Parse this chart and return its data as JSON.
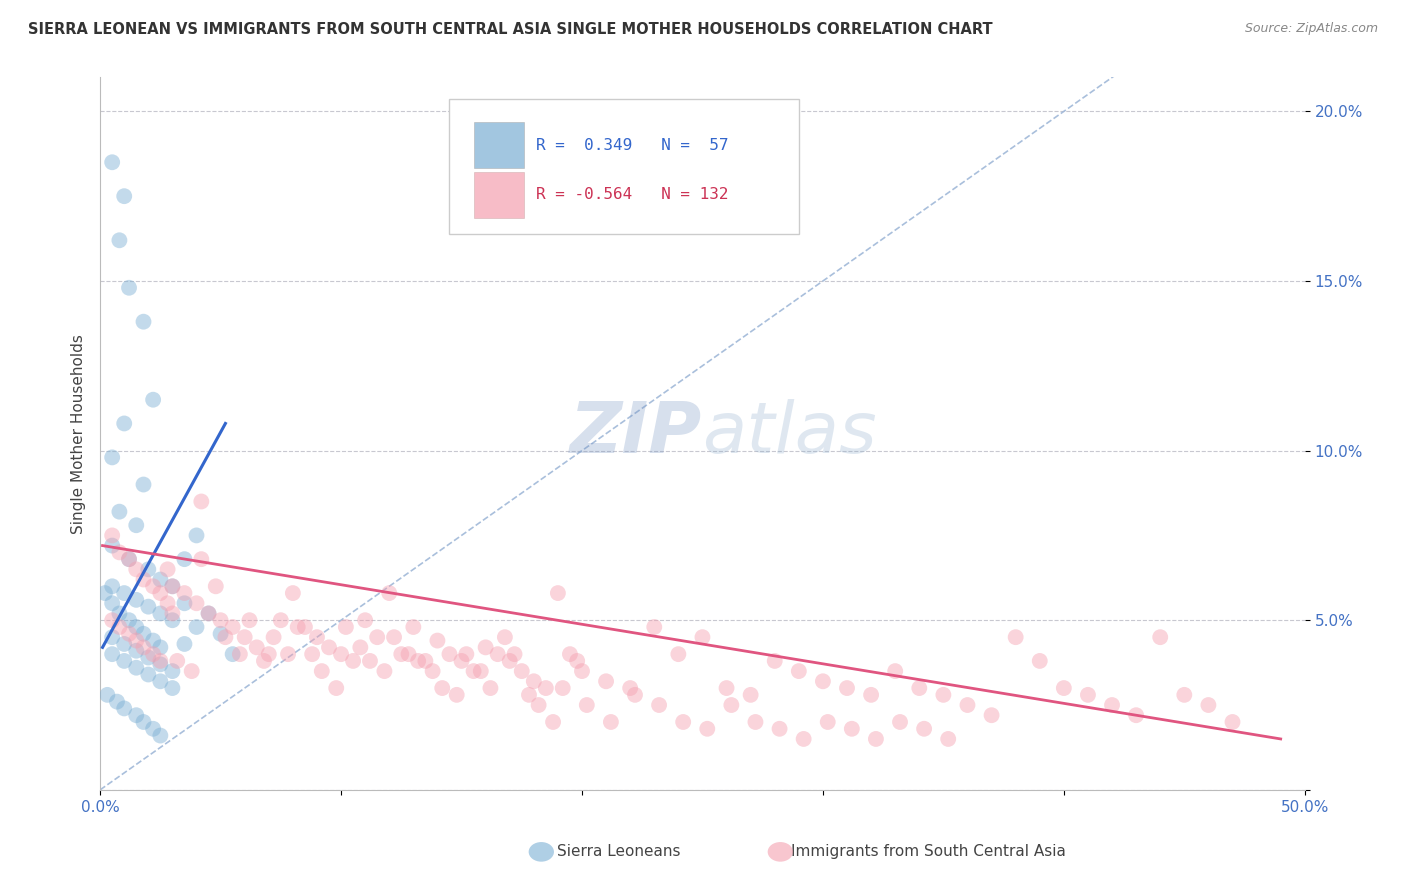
{
  "title": "SIERRA LEONEAN VS IMMIGRANTS FROM SOUTH CENTRAL ASIA SINGLE MOTHER HOUSEHOLDS CORRELATION CHART",
  "source": "Source: ZipAtlas.com",
  "ylabel": "Single Mother Households",
  "xlim": [
    0.0,
    0.5
  ],
  "ylim": [
    0.0,
    0.21
  ],
  "xticks": [
    0.0,
    0.1,
    0.2,
    0.3,
    0.4,
    0.5
  ],
  "xticklabels": [
    "0.0%",
    "",
    "",
    "",
    "",
    "50.0%"
  ],
  "yticks": [
    0.0,
    0.05,
    0.1,
    0.15,
    0.2
  ],
  "yticklabels": [
    "",
    "5.0%",
    "10.0%",
    "15.0%",
    "20.0%"
  ],
  "blue_color": "#7bafd4",
  "pink_color": "#f4a0b0",
  "blue_line_color": "#3366cc",
  "pink_line_color": "#e05580",
  "diagonal_color": "#a0b8d8",
  "watermark_color": "#ccd8e8",
  "background_color": "#ffffff",
  "title_fontsize": 10.5,
  "source_fontsize": 9,
  "blue_scatter": [
    [
      0.005,
      0.185
    ],
    [
      0.01,
      0.175
    ],
    [
      0.008,
      0.162
    ],
    [
      0.012,
      0.148
    ],
    [
      0.018,
      0.138
    ],
    [
      0.022,
      0.115
    ],
    [
      0.01,
      0.108
    ],
    [
      0.005,
      0.098
    ],
    [
      0.018,
      0.09
    ],
    [
      0.008,
      0.082
    ],
    [
      0.015,
      0.078
    ],
    [
      0.005,
      0.072
    ],
    [
      0.012,
      0.068
    ],
    [
      0.02,
      0.065
    ],
    [
      0.025,
      0.062
    ],
    [
      0.005,
      0.06
    ],
    [
      0.01,
      0.058
    ],
    [
      0.015,
      0.056
    ],
    [
      0.02,
      0.054
    ],
    [
      0.025,
      0.052
    ],
    [
      0.03,
      0.06
    ],
    [
      0.035,
      0.068
    ],
    [
      0.04,
      0.075
    ],
    [
      0.002,
      0.058
    ],
    [
      0.005,
      0.055
    ],
    [
      0.008,
      0.052
    ],
    [
      0.012,
      0.05
    ],
    [
      0.015,
      0.048
    ],
    [
      0.018,
      0.046
    ],
    [
      0.022,
      0.044
    ],
    [
      0.025,
      0.042
    ],
    [
      0.005,
      0.04
    ],
    [
      0.01,
      0.038
    ],
    [
      0.015,
      0.036
    ],
    [
      0.02,
      0.034
    ],
    [
      0.025,
      0.032
    ],
    [
      0.03,
      0.03
    ],
    [
      0.003,
      0.028
    ],
    [
      0.007,
      0.026
    ],
    [
      0.01,
      0.024
    ],
    [
      0.015,
      0.022
    ],
    [
      0.018,
      0.02
    ],
    [
      0.022,
      0.018
    ],
    [
      0.025,
      0.016
    ],
    [
      0.03,
      0.05
    ],
    [
      0.035,
      0.055
    ],
    [
      0.005,
      0.045
    ],
    [
      0.01,
      0.043
    ],
    [
      0.015,
      0.041
    ],
    [
      0.02,
      0.039
    ],
    [
      0.025,
      0.037
    ],
    [
      0.03,
      0.035
    ],
    [
      0.035,
      0.043
    ],
    [
      0.04,
      0.048
    ],
    [
      0.045,
      0.052
    ],
    [
      0.05,
      0.046
    ],
    [
      0.055,
      0.04
    ]
  ],
  "pink_scatter": [
    [
      0.005,
      0.075
    ],
    [
      0.008,
      0.07
    ],
    [
      0.012,
      0.068
    ],
    [
      0.015,
      0.065
    ],
    [
      0.018,
      0.062
    ],
    [
      0.022,
      0.06
    ],
    [
      0.025,
      0.058
    ],
    [
      0.028,
      0.055
    ],
    [
      0.03,
      0.052
    ],
    [
      0.005,
      0.05
    ],
    [
      0.008,
      0.048
    ],
    [
      0.012,
      0.046
    ],
    [
      0.015,
      0.044
    ],
    [
      0.018,
      0.042
    ],
    [
      0.022,
      0.04
    ],
    [
      0.025,
      0.038
    ],
    [
      0.028,
      0.065
    ],
    [
      0.03,
      0.06
    ],
    [
      0.035,
      0.058
    ],
    [
      0.04,
      0.055
    ],
    [
      0.042,
      0.085
    ],
    [
      0.045,
      0.052
    ],
    [
      0.05,
      0.05
    ],
    [
      0.055,
      0.048
    ],
    [
      0.06,
      0.045
    ],
    [
      0.065,
      0.042
    ],
    [
      0.07,
      0.04
    ],
    [
      0.075,
      0.05
    ],
    [
      0.08,
      0.058
    ],
    [
      0.085,
      0.048
    ],
    [
      0.09,
      0.045
    ],
    [
      0.095,
      0.042
    ],
    [
      0.1,
      0.04
    ],
    [
      0.105,
      0.038
    ],
    [
      0.11,
      0.05
    ],
    [
      0.115,
      0.045
    ],
    [
      0.12,
      0.058
    ],
    [
      0.125,
      0.04
    ],
    [
      0.13,
      0.048
    ],
    [
      0.135,
      0.038
    ],
    [
      0.14,
      0.044
    ],
    [
      0.145,
      0.04
    ],
    [
      0.15,
      0.038
    ],
    [
      0.155,
      0.035
    ],
    [
      0.16,
      0.042
    ],
    [
      0.165,
      0.04
    ],
    [
      0.17,
      0.038
    ],
    [
      0.175,
      0.035
    ],
    [
      0.18,
      0.032
    ],
    [
      0.185,
      0.03
    ],
    [
      0.19,
      0.058
    ],
    [
      0.195,
      0.04
    ],
    [
      0.2,
      0.035
    ],
    [
      0.21,
      0.032
    ],
    [
      0.22,
      0.03
    ],
    [
      0.23,
      0.048
    ],
    [
      0.24,
      0.04
    ],
    [
      0.25,
      0.045
    ],
    [
      0.26,
      0.03
    ],
    [
      0.27,
      0.028
    ],
    [
      0.28,
      0.038
    ],
    [
      0.29,
      0.035
    ],
    [
      0.3,
      0.032
    ],
    [
      0.31,
      0.03
    ],
    [
      0.32,
      0.028
    ],
    [
      0.33,
      0.035
    ],
    [
      0.34,
      0.03
    ],
    [
      0.35,
      0.028
    ],
    [
      0.36,
      0.025
    ],
    [
      0.37,
      0.022
    ],
    [
      0.38,
      0.045
    ],
    [
      0.39,
      0.038
    ],
    [
      0.4,
      0.03
    ],
    [
      0.41,
      0.028
    ],
    [
      0.42,
      0.025
    ],
    [
      0.43,
      0.022
    ],
    [
      0.44,
      0.045
    ],
    [
      0.45,
      0.028
    ],
    [
      0.46,
      0.025
    ],
    [
      0.032,
      0.038
    ],
    [
      0.038,
      0.035
    ],
    [
      0.042,
      0.068
    ],
    [
      0.048,
      0.06
    ],
    [
      0.052,
      0.045
    ],
    [
      0.058,
      0.04
    ],
    [
      0.062,
      0.05
    ],
    [
      0.068,
      0.038
    ],
    [
      0.072,
      0.045
    ],
    [
      0.078,
      0.04
    ],
    [
      0.082,
      0.048
    ],
    [
      0.088,
      0.04
    ],
    [
      0.092,
      0.035
    ],
    [
      0.098,
      0.03
    ],
    [
      0.102,
      0.048
    ],
    [
      0.108,
      0.042
    ],
    [
      0.112,
      0.038
    ],
    [
      0.118,
      0.035
    ],
    [
      0.122,
      0.045
    ],
    [
      0.128,
      0.04
    ],
    [
      0.132,
      0.038
    ],
    [
      0.138,
      0.035
    ],
    [
      0.142,
      0.03
    ],
    [
      0.148,
      0.028
    ],
    [
      0.152,
      0.04
    ],
    [
      0.158,
      0.035
    ],
    [
      0.162,
      0.03
    ],
    [
      0.168,
      0.045
    ],
    [
      0.172,
      0.04
    ],
    [
      0.178,
      0.028
    ],
    [
      0.182,
      0.025
    ],
    [
      0.188,
      0.02
    ],
    [
      0.192,
      0.03
    ],
    [
      0.198,
      0.038
    ],
    [
      0.202,
      0.025
    ],
    [
      0.212,
      0.02
    ],
    [
      0.222,
      0.028
    ],
    [
      0.232,
      0.025
    ],
    [
      0.242,
      0.02
    ],
    [
      0.252,
      0.018
    ],
    [
      0.262,
      0.025
    ],
    [
      0.272,
      0.02
    ],
    [
      0.282,
      0.018
    ],
    [
      0.292,
      0.015
    ],
    [
      0.302,
      0.02
    ],
    [
      0.312,
      0.018
    ],
    [
      0.322,
      0.015
    ],
    [
      0.332,
      0.02
    ],
    [
      0.342,
      0.018
    ],
    [
      0.352,
      0.015
    ],
    [
      0.47,
      0.02
    ]
  ],
  "blue_trend_x": [
    0.001,
    0.052
  ],
  "blue_trend_y": [
    0.042,
    0.108
  ],
  "pink_trend_x": [
    0.001,
    0.49
  ],
  "pink_trend_y": [
    0.072,
    0.015
  ]
}
